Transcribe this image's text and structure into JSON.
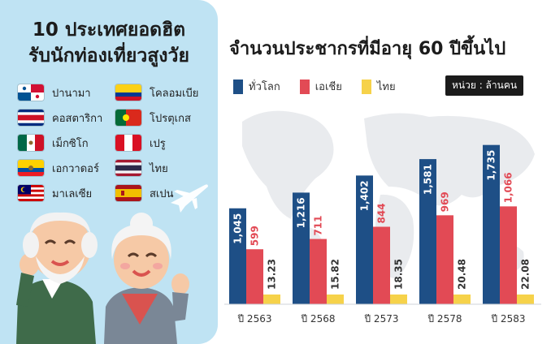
{
  "left_panel": {
    "title_line1": "10 ประเทศยอดฮิต",
    "title_line2": "รับนักท่องเที่ยวสูงวัย",
    "countries": [
      {
        "name": "ปานามา",
        "flag": "panama"
      },
      {
        "name": "คอสตาริกา",
        "flag": "costa-rica"
      },
      {
        "name": "เม็กซิโก",
        "flag": "mexico"
      },
      {
        "name": "เอกวาดอร์",
        "flag": "ecuador"
      },
      {
        "name": "มาเลเซีย",
        "flag": "malaysia"
      },
      {
        "name": "โคลอมเบีย",
        "flag": "colombia"
      },
      {
        "name": "โปรตุเกส",
        "flag": "portugal"
      },
      {
        "name": "เปรู",
        "flag": "peru"
      },
      {
        "name": "ไทย",
        "flag": "thailand"
      },
      {
        "name": "สเปน",
        "flag": "spain"
      }
    ]
  },
  "unit_label": "หน่วย : ล้านคน",
  "colors": {
    "world": "#1e4f86",
    "asia": "#e24a55",
    "thai": "#f6d24a"
  },
  "chart_data": {
    "type": "bar",
    "title": "จำนวนประชากรที่มีอายุ 60 ปีขึ้นไป",
    "categories": [
      "ปี 2563",
      "ปี 2568",
      "ปี 2573",
      "ปี 2578",
      "ปี 2583"
    ],
    "series": [
      {
        "name": "ทั่วโลก",
        "values": [
          1045,
          1216,
          1402,
          1581,
          1735
        ],
        "labels": [
          "1,045",
          "1,216",
          "1,402",
          "1,581",
          "1,735"
        ]
      },
      {
        "name": "เอเชีย",
        "values": [
          599,
          711,
          844,
          969,
          1066
        ],
        "labels": [
          "599",
          "711",
          "844",
          "969",
          "1,066"
        ]
      },
      {
        "name": "ไทย",
        "values": [
          13.23,
          15.82,
          18.35,
          20.48,
          22.08
        ],
        "labels": [
          "13.23",
          "15.82",
          "18.35",
          "20.48",
          "22.08"
        ]
      }
    ],
    "ylim": [
      0,
      1900
    ]
  }
}
